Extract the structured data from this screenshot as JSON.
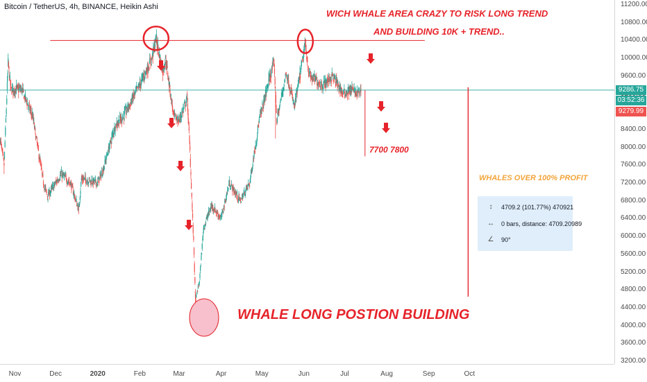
{
  "header": {
    "title": "Bitcoin / TetherUS, 4h, BINANCE, Heikin Ashi"
  },
  "annotations": {
    "top_line1": "WICH WHALE AREA CRAZY TO RISK LONG TREND",
    "top_line2": "AND BUILDING 10K + TREND..",
    "target_text": "7700 7800",
    "whales_profit": "WHALES OVER 100% PROFIT",
    "bottom_text": "WHALE LONG POSTION BUILDING"
  },
  "measure": {
    "row1": "4709.2 (101.77%) 470921",
    "row2": "0 bars, distance: 4709.20989",
    "row3": "90°"
  },
  "price_tags": {
    "last": "9286.75",
    "countdown": "03:52:36",
    "second": "9279.99"
  },
  "colors": {
    "up": "#26a69a",
    "down": "#ef5350",
    "annotation": "#e6232a",
    "last_price_line": "#26a69a",
    "price_tag_green": "#26a69a",
    "price_tag_red": "#ef5350",
    "profit_text": "#f2a43a",
    "measure_bg": "#dfeefa"
  },
  "chart_data": {
    "type": "candlestick",
    "ylim": [
      3200,
      11200
    ],
    "yticks": [
      "11200.00",
      "10800.00",
      "10400.00",
      "10000.00",
      "9600.00",
      "9200.00",
      "8800.00",
      "8400.00",
      "8000.00",
      "7600.00",
      "7200.00",
      "6800.00",
      "6400.00",
      "6000.00",
      "5600.00",
      "5200.00",
      "4800.00",
      "4400.00",
      "4000.00",
      "3600.00",
      "3200.00"
    ],
    "xticks": [
      "Nov",
      "Dec",
      "2020",
      "Feb",
      "Mar",
      "Apr",
      "May",
      "Jun",
      "Jul",
      "Aug",
      "Sep",
      "Oct"
    ],
    "x_range": [
      "2019-10-21",
      "2020-10-08"
    ],
    "price_path": [
      [
        "2019-10-21",
        8200
      ],
      [
        "2019-10-24",
        7600
      ],
      [
        "2019-10-27",
        9900
      ],
      [
        "2019-10-29",
        9300
      ],
      [
        "2019-11-06",
        9300
      ],
      [
        "2019-11-14",
        8700
      ],
      [
        "2019-11-22",
        7200
      ],
      [
        "2019-11-25",
        6900
      ],
      [
        "2019-12-05",
        7400
      ],
      [
        "2019-12-12",
        7200
      ],
      [
        "2019-12-18",
        6600
      ],
      [
        "2019-12-20",
        7300
      ],
      [
        "2020-01-01",
        7200
      ],
      [
        "2020-01-05",
        7500
      ],
      [
        "2020-01-14",
        8500
      ],
      [
        "2020-01-20",
        8700
      ],
      [
        "2020-02-01",
        9400
      ],
      [
        "2020-02-10",
        10000
      ],
      [
        "2020-02-13",
        10450
      ],
      [
        "2020-02-18",
        9700
      ],
      [
        "2020-02-20",
        10000
      ],
      [
        "2020-02-26",
        8700
      ],
      [
        "2020-03-01",
        8600
      ],
      [
        "2020-03-07",
        9100
      ],
      [
        "2020-03-09",
        7900
      ],
      [
        "2020-03-12",
        5600
      ],
      [
        "2020-03-13",
        4550
      ],
      [
        "2020-03-16",
        5000
      ],
      [
        "2020-03-19",
        6200
      ],
      [
        "2020-03-25",
        6700
      ],
      [
        "2020-04-01",
        6400
      ],
      [
        "2020-04-07",
        7200
      ],
      [
        "2020-04-15",
        6800
      ],
      [
        "2020-04-22",
        7200
      ],
      [
        "2020-04-29",
        8600
      ],
      [
        "2020-05-07",
        9600
      ],
      [
        "2020-05-10",
        9900
      ],
      [
        "2020-05-12",
        8600
      ],
      [
        "2020-05-19",
        9700
      ],
      [
        "2020-05-25",
        8900
      ],
      [
        "2020-06-02",
        10300
      ],
      [
        "2020-06-05",
        9600
      ],
      [
        "2020-06-15",
        9400
      ],
      [
        "2020-06-22",
        9600
      ],
      [
        "2020-06-30",
        9200
      ],
      [
        "2020-07-06",
        9300
      ],
      [
        "2020-07-10",
        9200
      ],
      [
        "2020-07-13",
        9287
      ]
    ],
    "lows": [
      [
        "2019-10-24",
        7400
      ],
      [
        "2019-12-18",
        6500
      ],
      [
        "2020-03-13",
        4450
      ],
      [
        "2020-05-11",
        8200
      ]
    ],
    "last_price": 9286.75,
    "resistance": {
      "from": "2019-11-27",
      "to": "2020-08-29",
      "price": 10400
    },
    "target_line": {
      "date": "2020-07-16",
      "from": 9287,
      "to": 7800
    },
    "measure_line": {
      "date": "2020-09-30",
      "from": 4650,
      "to": 9350
    }
  }
}
